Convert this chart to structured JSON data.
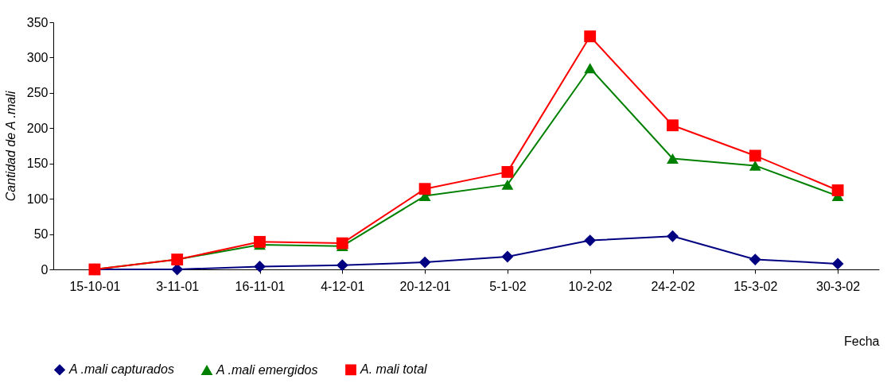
{
  "chart_data": {
    "type": "line",
    "xlabel": "Fecha",
    "ylabel": "Cantidad de A .mali",
    "categories": [
      "15-10-01",
      "3-11-01",
      "16-11-01",
      "4-12-01",
      "20-12-01",
      "5-1-02",
      "10-2-02",
      "24-2-02",
      "15-3-02",
      "30-3-02"
    ],
    "series": [
      {
        "name": "A .mali capturados",
        "color": "#000080",
        "marker": "diamond",
        "values": [
          0,
          0,
          4,
          6,
          10,
          18,
          41,
          47,
          14,
          8
        ]
      },
      {
        "name": "A .mali emergidos",
        "color": "#008000",
        "marker": "triangle",
        "values": [
          0,
          14,
          35,
          33,
          104,
          120,
          285,
          157,
          147,
          104
        ]
      },
      {
        "name": "A. mali total",
        "color": "#ff0000",
        "marker": "square",
        "values": [
          0,
          14,
          39,
          37,
          114,
          138,
          330,
          204,
          161,
          112
        ]
      }
    ],
    "ylim": [
      0,
      350
    ],
    "yticks": [
      0,
      50,
      100,
      150,
      200,
      250,
      300,
      350
    ],
    "grid": false,
    "legend": "bottom",
    "line_style": "solid"
  }
}
